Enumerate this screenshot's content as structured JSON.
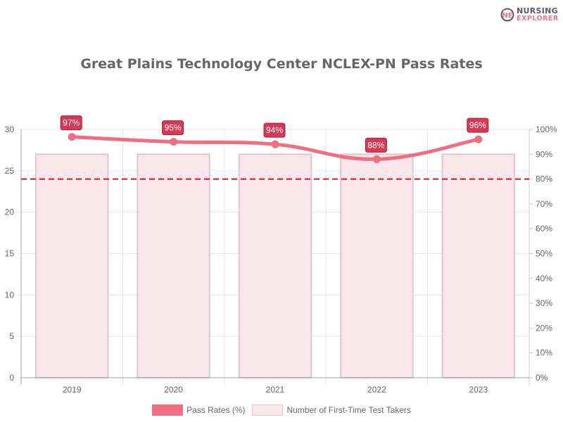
{
  "logo": {
    "line1": "NURSING",
    "line2": "EXPLORER",
    "badge": "NE"
  },
  "title": "Great Plains Technology Center NCLEX-PN Pass Rates",
  "legend": {
    "pass_rates": "Pass Rates (%)",
    "test_takers": "Number of First-Time Test Takers"
  },
  "axes": {
    "left_ticks": [
      "0",
      "5",
      "10",
      "15",
      "20",
      "25",
      "30"
    ],
    "right_ticks": [
      "0%",
      "10%",
      "20%",
      "30%",
      "40%",
      "50%",
      "60%",
      "70%",
      "80%",
      "90%",
      "100%"
    ],
    "x_ticks": [
      "2019",
      "2020",
      "2021",
      "2022",
      "2023"
    ]
  },
  "labels": [
    "97%",
    "95%",
    "94%",
    "88%",
    "96%"
  ],
  "colors": {
    "line": "#f06e82",
    "bar_fill": "#f9e6eb",
    "bar_border": "#dcc8cd",
    "label_bg": "#d43a55",
    "threshold": "#e0101e",
    "grid": "#e6e6e6",
    "axis": "#a0a0a0"
  },
  "chart_data": {
    "type": "bar+line",
    "title": "Great Plains Technology Center NCLEX-PN Pass Rates",
    "categories": [
      "2019",
      "2020",
      "2021",
      "2022",
      "2023"
    ],
    "series": [
      {
        "name": "Number of First-Time Test Takers",
        "type": "bar",
        "axis": "left",
        "values": [
          27,
          27,
          27,
          27,
          27
        ]
      },
      {
        "name": "Pass Rates (%)",
        "type": "line",
        "axis": "right",
        "values": [
          97,
          95,
          94,
          88,
          96
        ]
      }
    ],
    "reference_lines": [
      {
        "axis": "right",
        "value": 80,
        "style": "dashed",
        "color": "#e0101e"
      }
    ],
    "xlabel": "",
    "ylabel_left": "",
    "ylabel_right": "",
    "ylim_left": [
      0,
      30
    ],
    "ylim_right": [
      0,
      100
    ],
    "grid": true,
    "legend_position": "bottom"
  }
}
